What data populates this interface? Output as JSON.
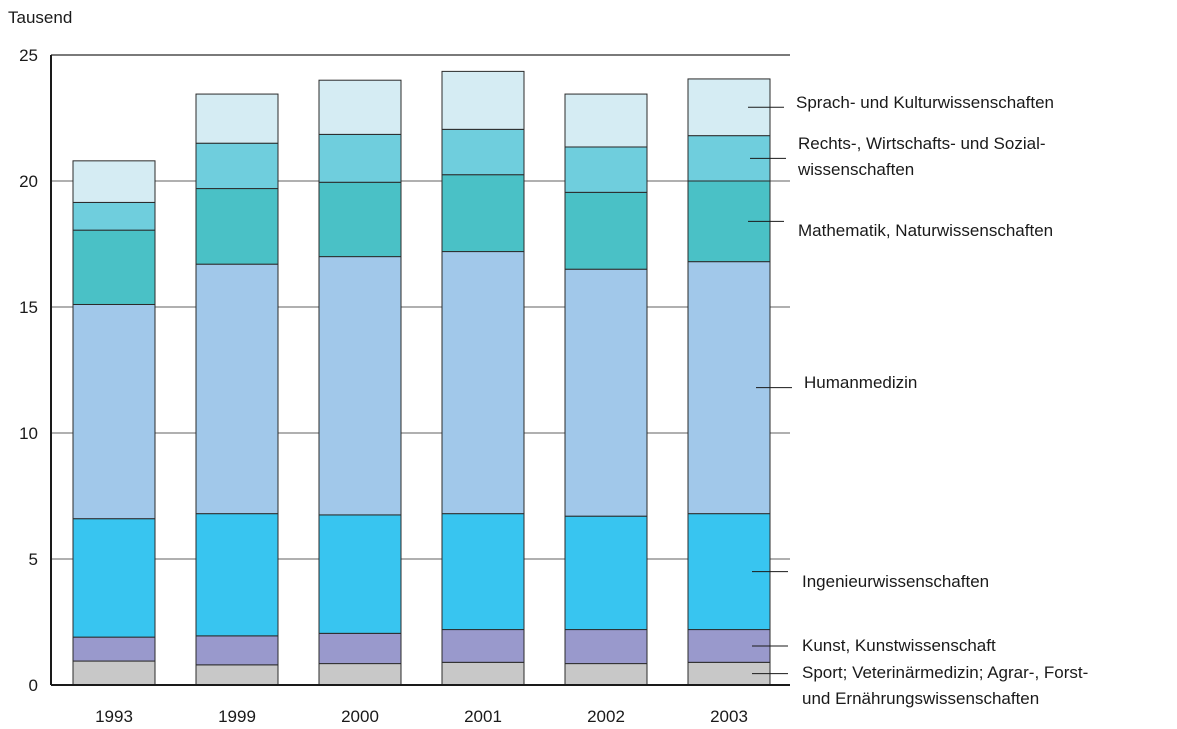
{
  "chart_data": {
    "type": "bar",
    "stacked": true,
    "unit_label": "Tausend",
    "ylim": [
      0,
      25
    ],
    "yticks": [
      "0",
      "5",
      "10",
      "15",
      "20",
      "25"
    ],
    "categories": [
      "1993",
      "1999",
      "2000",
      "2001",
      "2002",
      "2003"
    ],
    "grid": true,
    "legend_placement": "right",
    "series": [
      {
        "name": "Sport; Veterinärmedizin; Agrar-, Forst- und Ernährungswissenschaften",
        "label_lines": [
          "Sport; Veterinärmedizin; Agrar-, Forst-",
          "und Ernährungswissenschaften"
        ],
        "color": "#c8c8c8",
        "values": [
          0.95,
          0.8,
          0.85,
          0.9,
          0.85,
          0.9
        ]
      },
      {
        "name": "Kunst, Kunstwissenschaft",
        "label_lines": [
          "Kunst, Kunstwissenschaft"
        ],
        "color": "#9999cc",
        "values": [
          0.95,
          1.15,
          1.2,
          1.3,
          1.35,
          1.3
        ]
      },
      {
        "name": "Ingenieurwissenschaften",
        "label_lines": [
          "Ingenieurwissenschaften"
        ],
        "color": "#38c5f0",
        "values": [
          4.7,
          4.85,
          4.7,
          4.6,
          4.5,
          4.6
        ]
      },
      {
        "name": "Humanmedizin",
        "label_lines": [
          "Humanmedizin"
        ],
        "color": "#a1c8ea",
        "values": [
          8.5,
          9.9,
          10.25,
          10.4,
          9.8,
          10.0
        ]
      },
      {
        "name": "Mathematik, Naturwissenschaften",
        "label_lines": [
          "Mathematik, Naturwissenschaften"
        ],
        "color": "#4ac1c6",
        "values": [
          2.95,
          3.0,
          2.95,
          3.05,
          3.05,
          3.2
        ]
      },
      {
        "name": "Rechts-, Wirtschafts- und Sozialwissenschaften",
        "label_lines": [
          "Rechts-, Wirtschafts- und Sozial-",
          "wissenschaften"
        ],
        "color": "#6fcedd",
        "values": [
          1.1,
          1.8,
          1.9,
          1.8,
          1.8,
          1.8
        ]
      },
      {
        "name": "Sprach- und Kulturwissenschaften",
        "label_lines": [
          "Sprach- und Kulturwissenschaften"
        ],
        "color": "#d5ecf3",
        "values": [
          1.65,
          1.95,
          2.15,
          2.3,
          2.1,
          2.25
        ]
      }
    ]
  }
}
